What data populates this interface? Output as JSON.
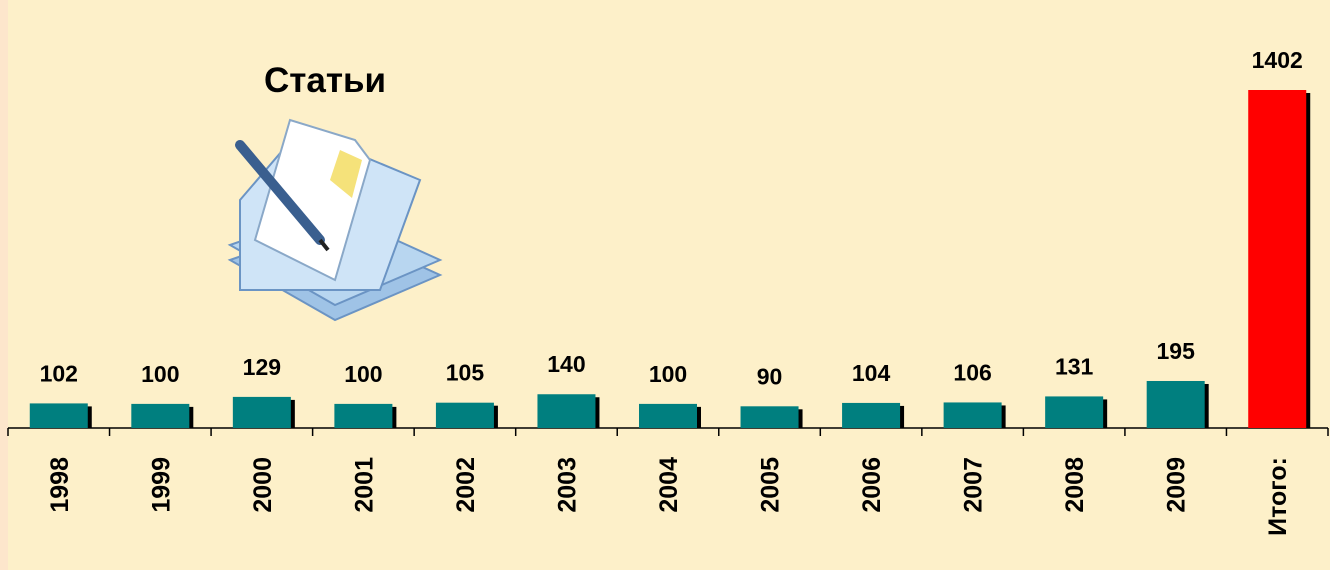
{
  "chart_data": {
    "type": "bar",
    "title": "Статьи",
    "categories": [
      "1998",
      "1999",
      "2000",
      "2001",
      "2002",
      "2003",
      "2004",
      "2005",
      "2006",
      "2007",
      "2008",
      "2009",
      "Итого:"
    ],
    "values": [
      102,
      100,
      129,
      100,
      105,
      140,
      100,
      90,
      104,
      106,
      131,
      195,
      1402
    ],
    "colors": [
      "#007f7f",
      "#007f7f",
      "#007f7f",
      "#007f7f",
      "#007f7f",
      "#007f7f",
      "#007f7f",
      "#007f7f",
      "#007f7f",
      "#007f7f",
      "#007f7f",
      "#007f7f",
      "#ff0000"
    ]
  }
}
